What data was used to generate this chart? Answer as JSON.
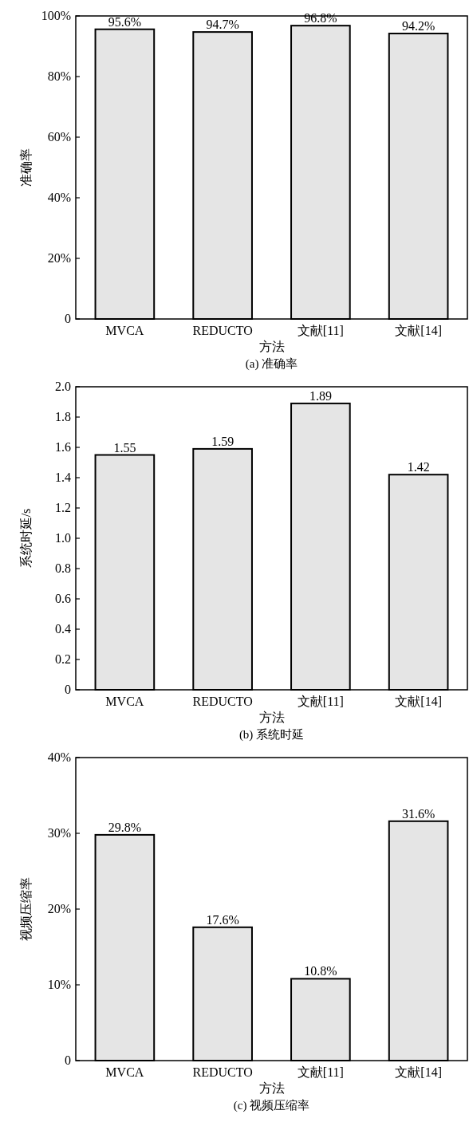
{
  "chart_data": [
    {
      "type": "bar",
      "title": "(a) 准确率",
      "xlabel": "方法",
      "ylabel": "准确率",
      "categories": [
        "MVCA",
        "REDUCTO",
        "文献[11]",
        "文献[14]"
      ],
      "values": [
        95.6,
        94.7,
        96.8,
        94.2
      ],
      "value_labels": [
        "95.6%",
        "94.7%",
        "96.8%",
        "94.2%"
      ],
      "color": "#e5e5e5",
      "ylim": [
        0,
        100
      ],
      "yticks": [
        0,
        {
          "value": 20,
          "label": "20%"
        },
        {
          "value": 40,
          "label": "40%"
        },
        {
          "value": 60,
          "label": "60%"
        },
        {
          "value": 80,
          "label": "80%"
        },
        {
          "value": 100,
          "label": "100%"
        }
      ]
    },
    {
      "type": "bar",
      "title": "(b) 系统时延",
      "xlabel": "方法",
      "ylabel": "系统时延/s",
      "categories": [
        "MVCA",
        "REDUCTO",
        "文献[11]",
        "文献[14]"
      ],
      "values": [
        1.55,
        1.59,
        1.89,
        1.42
      ],
      "data_labels": true,
      "color": "#e5e5e5",
      "ylim": [
        0,
        2
      ],
      "yticks": [
        0,
        0.2,
        0.4,
        0.6,
        0.8,
        {
          "value": 1,
          "label": "1.0"
        },
        1.2,
        1.4,
        1.6,
        1.8,
        {
          "value": 2,
          "label": "2.0"
        }
      ]
    },
    {
      "type": "bar",
      "title": "(c) 视频压缩率",
      "xlabel": "方法",
      "ylabel": "视频压缩率",
      "categories": [
        "MVCA",
        "REDUCTO",
        "文献[11]",
        "文献[14]"
      ],
      "values": [
        29.8,
        17.6,
        10.8,
        31.6
      ],
      "value_labels": [
        "29.8%",
        "17.6%",
        "10.8%",
        "31.6%"
      ],
      "color": "#e5e5e5",
      "ylim": [
        0,
        40
      ],
      "yticks": [
        0,
        {
          "value": 10,
          "label": "10%"
        },
        {
          "value": 20,
          "label": "20%"
        },
        {
          "value": 30,
          "label": "30%"
        },
        {
          "value": 40,
          "label": "40%"
        }
      ]
    }
  ]
}
